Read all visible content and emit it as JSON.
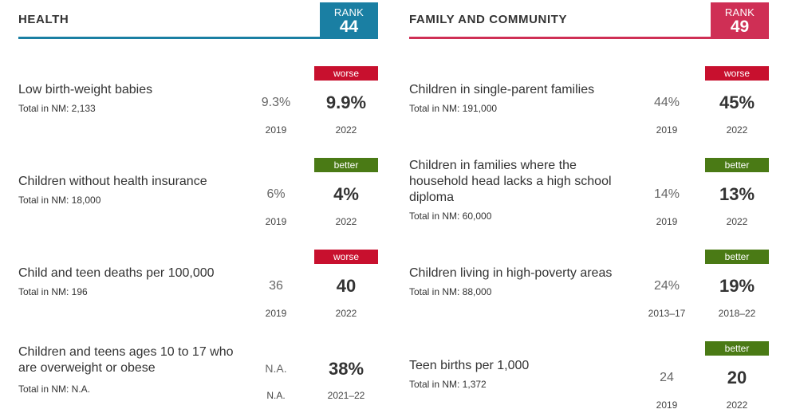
{
  "colors": {
    "health_accent": "#1a7fa3",
    "family_accent": "#cf2f55",
    "worse": "#c8102e",
    "better": "#4a7a15"
  },
  "health": {
    "title": "HEALTH",
    "rank_label": "RANK",
    "rank": "44",
    "rows": [
      {
        "name": "Low birth-weight babies",
        "total": "Total in NM: 2,133",
        "old_value": "9.3%",
        "old_year": "2019",
        "new_value": "9.9%",
        "new_year": "2022",
        "status": "worse"
      },
      {
        "name": "Children without health insurance",
        "total": "Total in NM: 18,000",
        "old_value": "6%",
        "old_year": "2019",
        "new_value": "4%",
        "new_year": "2022",
        "status": "better"
      },
      {
        "name": "Child and teen deaths per 100,000",
        "total": "Total in NM: 196",
        "old_value": "36",
        "old_year": "2019",
        "new_value": "40",
        "new_year": "2022",
        "status": "worse"
      },
      {
        "name": "Children and teens ages 10 to 17 who are overweight or obese",
        "total": "Total in NM: N.A.",
        "old_value": "N.A.",
        "old_year": "N.A.",
        "new_value": "38%",
        "new_year": "2021–22",
        "status": ""
      }
    ]
  },
  "family": {
    "title": "FAMILY AND COMMUNITY",
    "rank_label": "RANK",
    "rank": "49",
    "rows": [
      {
        "name": "Children in single-parent families",
        "total": "Total in NM: 191,000",
        "old_value": "44%",
        "old_year": "2019",
        "new_value": "45%",
        "new_year": "2022",
        "status": "worse"
      },
      {
        "name": "Children in families where the household head lacks a high school diploma",
        "total": "Total in NM: 60,000",
        "old_value": "14%",
        "old_year": "2019",
        "new_value": "13%",
        "new_year": "2022",
        "status": "better"
      },
      {
        "name": "Children living in high-poverty areas",
        "total": "Total in NM: 88,000",
        "old_value": "24%",
        "old_year": "2013–17",
        "new_value": "19%",
        "new_year": "2018–22",
        "status": "better"
      },
      {
        "name": "Teen births per 1,000",
        "total": "Total in NM: 1,372",
        "old_value": "24",
        "old_year": "2019",
        "new_value": "20",
        "new_year": "2022",
        "status": "better"
      }
    ]
  }
}
